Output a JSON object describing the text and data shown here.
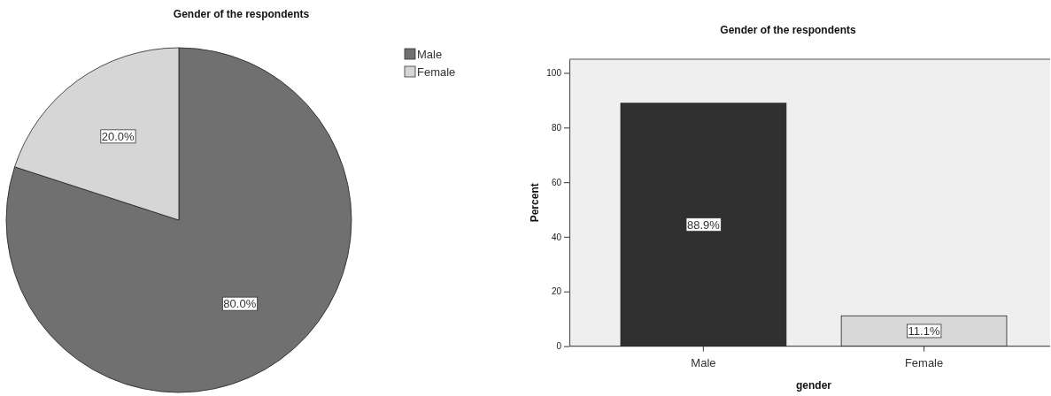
{
  "chart_data": [
    {
      "type": "pie",
      "title": "Gender of the respondents",
      "categories": [
        "Male",
        "Female"
      ],
      "values": [
        80,
        20
      ],
      "colors": [
        "#707070",
        "#d6d6d6"
      ],
      "value_labels": [
        "80.0%",
        "20.0%"
      ],
      "legend": "top right"
    },
    {
      "type": "bar",
      "title": "Gender of the respondents",
      "categories": [
        "Male",
        "Female"
      ],
      "values": [
        88.9,
        11.1
      ],
      "colors": [
        "#303030",
        "#d8d8d8"
      ],
      "value_labels": [
        "88.9%",
        "11.1%"
      ],
      "xlabel": "gender",
      "ylabel": "Percent",
      "ylim": [
        0,
        105
      ],
      "yticks": [
        0,
        20,
        40,
        60,
        80,
        100
      ]
    }
  ]
}
